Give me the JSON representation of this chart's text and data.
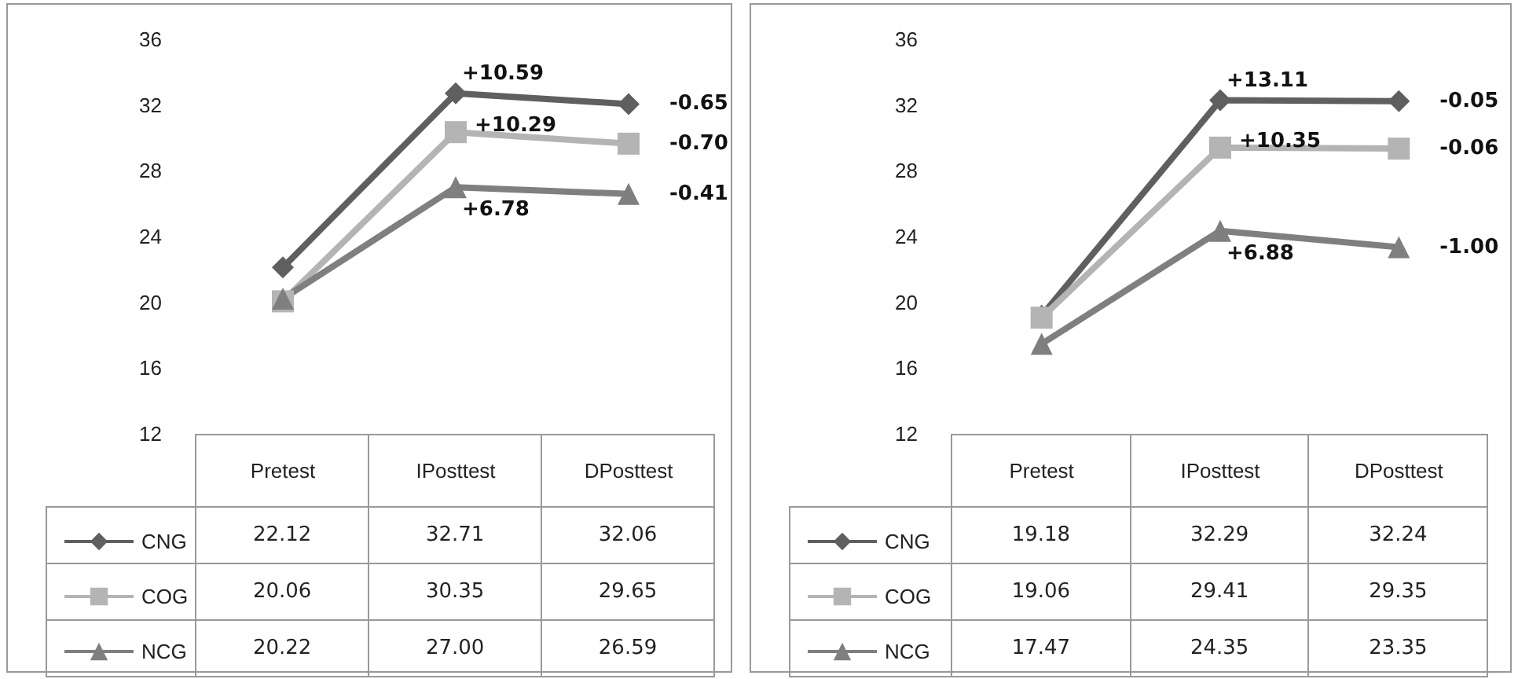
{
  "chart_data": [
    {
      "type": "line",
      "categories": [
        "Pretest",
        "IPosttest",
        "DPosttest"
      ],
      "ylim": [
        12,
        36
      ],
      "yticks": [
        12,
        16,
        20,
        24,
        28,
        32,
        36
      ],
      "grid": false,
      "legend": "bottom left",
      "series": [
        {
          "name": "CNG",
          "color": "#5f5f5f",
          "marker": "diamond",
          "values": [
            22.12,
            32.71,
            32.06
          ],
          "value_labels": [
            "22.12",
            "32.71",
            "32.06"
          ]
        },
        {
          "name": "COG",
          "color": "#b4b4b4",
          "marker": "square",
          "values": [
            20.06,
            30.35,
            29.65
          ],
          "value_labels": [
            "20.06",
            "30.35",
            "29.65"
          ]
        },
        {
          "name": "NCG",
          "color": "#7f7f7f",
          "marker": "triangle",
          "values": [
            20.22,
            27.0,
            26.59
          ],
          "value_labels": [
            "20.22",
            "27.00",
            "26.59"
          ]
        }
      ],
      "annotations": [
        {
          "text": "+10.59",
          "x": "IPosttest",
          "y": 32.71
        },
        {
          "text": "+10.29",
          "x": "IPosttest",
          "y": 30.35
        },
        {
          "text": "+6.78",
          "x": "IPosttest",
          "y": 27.0
        },
        {
          "text": "-0.65",
          "x": "DPosttest",
          "y": 32.06
        },
        {
          "text": "-0.70",
          "x": "DPosttest",
          "y": 29.65
        },
        {
          "text": "-0.41",
          "x": "DPosttest",
          "y": 26.59
        }
      ]
    },
    {
      "type": "line",
      "categories": [
        "Pretest",
        "IPosttest",
        "DPosttest"
      ],
      "ylim": [
        12,
        36
      ],
      "yticks": [
        12,
        16,
        20,
        24,
        28,
        32,
        36
      ],
      "grid": false,
      "legend": "bottom left",
      "series": [
        {
          "name": "CNG",
          "color": "#5f5f5f",
          "marker": "diamond",
          "values": [
            19.18,
            32.29,
            32.24
          ],
          "value_labels": [
            "19.18",
            "32.29",
            "32.24"
          ]
        },
        {
          "name": "COG",
          "color": "#b4b4b4",
          "marker": "square",
          "values": [
            19.06,
            29.41,
            29.35
          ],
          "value_labels": [
            "19.06",
            "29.41",
            "29.35"
          ]
        },
        {
          "name": "NCG",
          "color": "#7f7f7f",
          "marker": "triangle",
          "values": [
            17.47,
            24.35,
            23.35
          ],
          "value_labels": [
            "17.47",
            "24.35",
            "23.35"
          ]
        }
      ],
      "annotations": [
        {
          "text": "+13.11",
          "x": "IPosttest",
          "y": 32.29
        },
        {
          "text": "+10.35",
          "x": "IPosttest",
          "y": 29.41
        },
        {
          "text": "+6.88",
          "x": "IPosttest",
          "y": 24.35
        },
        {
          "text": "-0.05",
          "x": "DPosttest",
          "y": 32.24
        },
        {
          "text": "-0.06",
          "x": "DPosttest",
          "y": 29.35
        },
        {
          "text": "-1.00",
          "x": "DPosttest",
          "y": 23.35
        }
      ]
    }
  ]
}
